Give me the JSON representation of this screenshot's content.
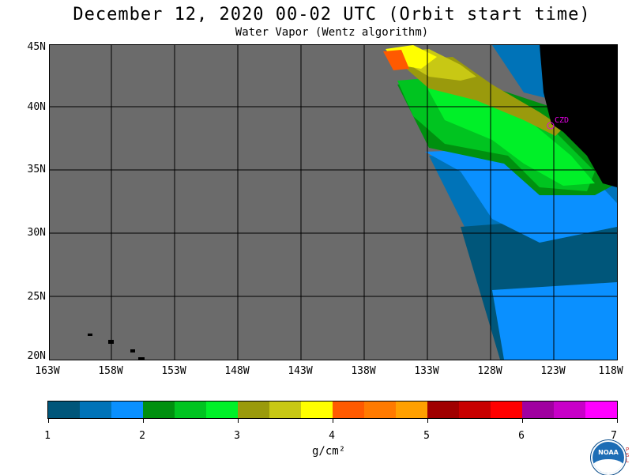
{
  "title": "December 12, 2020  00-02 UTC  (Orbit start time)",
  "subtitle": "Water Vapor (Wentz algorithm)",
  "map": {
    "lat_labels": [
      "45N",
      "40N",
      "35N",
      "30N",
      "25N",
      "20N"
    ],
    "lon_labels": [
      "163W",
      "158W",
      "153W",
      "148W",
      "143W",
      "138W",
      "133W",
      "128W",
      "123W",
      "118W"
    ],
    "station_label": "CZD",
    "colors": {
      "no_data": "#6b6b6b",
      "land": "#000000",
      "grid": "#000000",
      "marker": "#e600e6"
    }
  },
  "colorbar": {
    "labels": [
      "1",
      "2",
      "3",
      "4",
      "5",
      "6",
      "7"
    ],
    "units": "g/cm²",
    "colors": [
      "#00567a",
      "#0073b8",
      "#0a90ff",
      "#00900f",
      "#00c420",
      "#00f028",
      "#9a9a0c",
      "#c8c814",
      "#ffff00",
      "#ff5a00",
      "#ff7a00",
      "#ffa000",
      "#a00000",
      "#c80000",
      "#ff0000",
      "#a000a0",
      "#c800c8",
      "#ff00ff"
    ]
  },
  "logo": {
    "text": "NOAA",
    "side_text": "PSL"
  }
}
